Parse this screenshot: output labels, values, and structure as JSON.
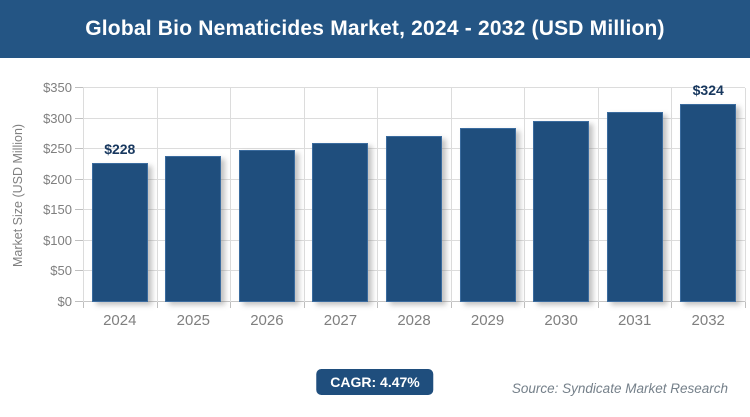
{
  "header": {
    "title": "Global Bio Nematicides Market, 2024 - 2032 (USD Million)"
  },
  "chart_data": {
    "type": "bar",
    "title": "Global Bio Nematicides Market, 2024 - 2032 (USD Million)",
    "categories": [
      "2024",
      "2025",
      "2026",
      "2027",
      "2028",
      "2029",
      "2030",
      "2031",
      "2032"
    ],
    "values": [
      228,
      238,
      249,
      260,
      272,
      284,
      296,
      310,
      324
    ],
    "bar_labels": [
      "$228",
      "",
      "",
      "",
      "",
      "",
      "",
      "",
      "$324"
    ],
    "xlabel": "",
    "ylabel": "Market Size (USD Million)",
    "ylim": [
      0,
      350
    ],
    "ytick_labels": [
      "$0",
      "$50",
      "$100",
      "$150",
      "$200",
      "$250",
      "$300",
      "$350"
    ],
    "grid": true,
    "legend": false
  },
  "footer": {
    "cagr_label": "CAGR: 4.47%",
    "source": "Source: Syndicate Market Research"
  },
  "colors": {
    "banner_bg": "#245584",
    "banner_text": "#FFFFFF",
    "bar_fill": "#1F4E7D",
    "bar_border": "#3A6B9E",
    "gridline": "#DCDCDC",
    "axis_text": "#7F7F7F",
    "data_label": "#17375E",
    "badge_bg": "#1F4E7D",
    "badge_text": "#FFFFFF",
    "source_text": "#75808A"
  }
}
